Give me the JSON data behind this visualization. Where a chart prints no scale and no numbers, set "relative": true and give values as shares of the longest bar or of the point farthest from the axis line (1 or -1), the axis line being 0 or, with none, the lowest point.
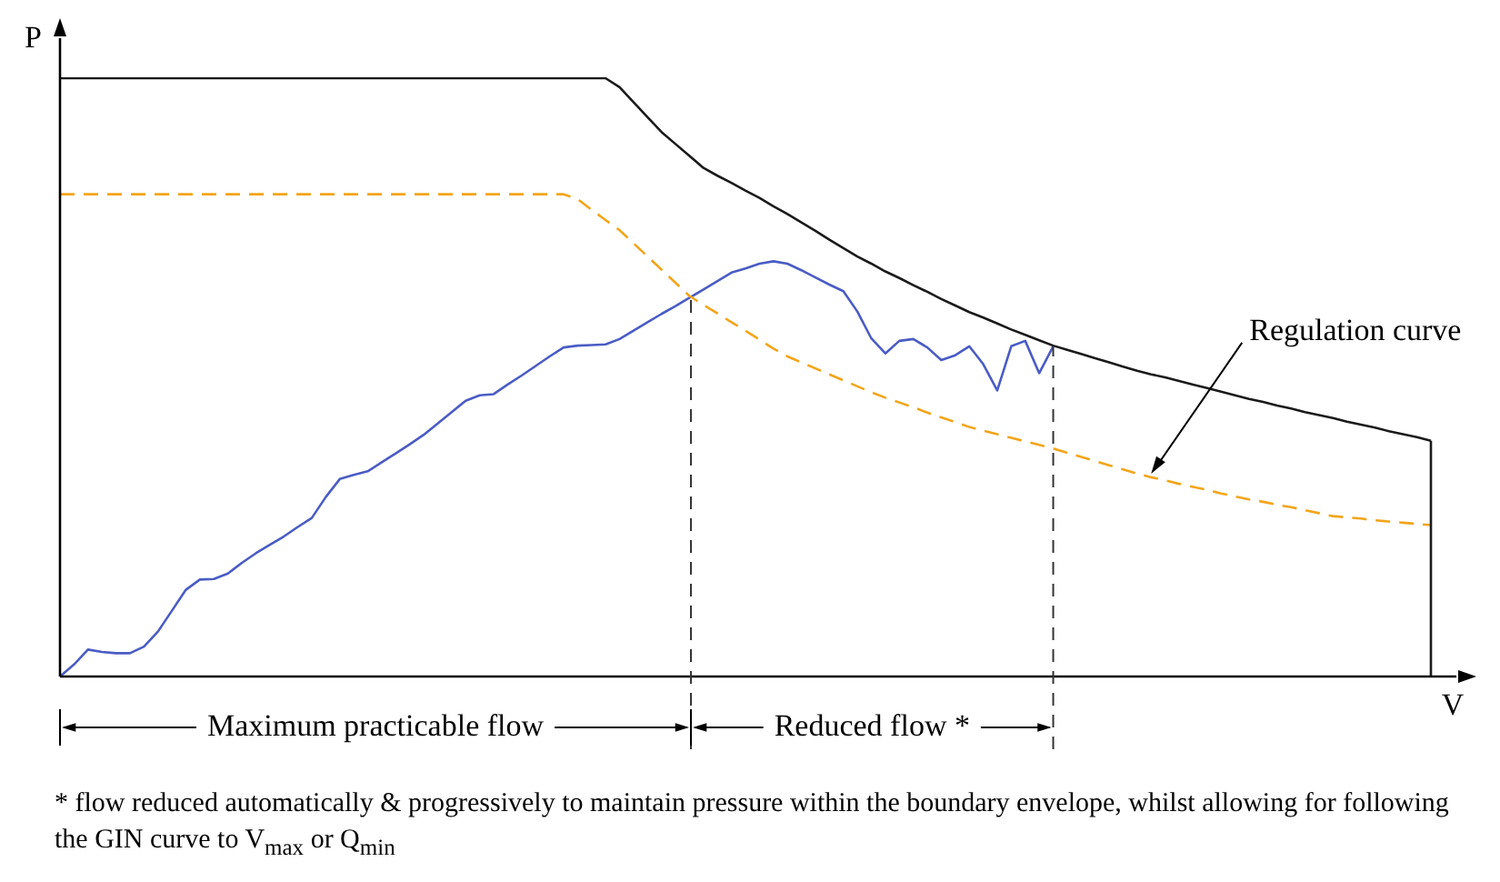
{
  "chart_data": {
    "type": "line",
    "relative": true,
    "xlabel": "V",
    "ylabel": "P",
    "marker": "none",
    "categories": [
      null,
      null,
      null,
      null,
      null,
      null,
      null,
      null,
      null,
      null,
      null,
      null,
      null,
      null,
      null,
      null,
      null,
      null,
      null,
      null,
      null,
      null,
      null,
      null,
      null,
      null,
      null,
      null,
      null,
      null,
      null,
      null,
      null,
      null,
      null,
      null,
      null,
      null,
      null,
      null,
      null,
      null,
      null,
      null,
      null,
      null,
      null,
      null,
      null,
      null,
      null,
      null,
      null,
      null,
      null,
      null,
      null,
      null,
      null,
      null,
      null,
      null,
      null,
      null,
      null,
      null,
      null,
      null,
      null,
      null,
      null,
      null,
      null,
      null,
      null,
      null,
      null,
      null,
      null,
      null,
      null,
      null,
      null,
      null,
      null,
      null,
      null,
      null,
      null,
      null,
      null,
      null,
      null,
      null,
      null,
      null,
      null,
      null,
      null
    ],
    "series": [
      {
        "color": "#1a1a1a",
        "line_style": "solid",
        "values": [
          1,
          1,
          1,
          1,
          1,
          1,
          1,
          1,
          1,
          1,
          1,
          1,
          1,
          1,
          1,
          1,
          1,
          1,
          1,
          1,
          1,
          1,
          1,
          1,
          1,
          1,
          1,
          1,
          1,
          1,
          1,
          1,
          1,
          1,
          1,
          1,
          1,
          1,
          1,
          1,
          0.985,
          0.96,
          0.935,
          0.91,
          0.89,
          0.87,
          0.85,
          0.837,
          0.825,
          0.812,
          0.8,
          0.786,
          0.773,
          0.759,
          0.745,
          0.73,
          0.716,
          0.702,
          0.69,
          0.677,
          0.666,
          0.654,
          0.643,
          0.631,
          0.62,
          0.609,
          0.6,
          0.59,
          0.58,
          0.571,
          0.562,
          0.553,
          0.546,
          0.539,
          0.532,
          0.525,
          0.518,
          0.511,
          0.505,
          0.5,
          0.494,
          0.488,
          0.482,
          0.476,
          0.47,
          0.464,
          0.459,
          0.453,
          0.448,
          0.442,
          0.437,
          0.432,
          0.426,
          0.421,
          0.416,
          0.41,
          0.405,
          0.4,
          0.394
        ]
      },
      {
        "color": "#f2a51a",
        "line_style": "dashed",
        "values": [
          0.806,
          0.806,
          0.806,
          0.806,
          0.806,
          0.806,
          0.806,
          0.806,
          0.806,
          0.806,
          0.806,
          0.806,
          0.806,
          0.806,
          0.806,
          0.806,
          0.806,
          0.806,
          0.806,
          0.806,
          0.806,
          0.806,
          0.806,
          0.806,
          0.806,
          0.806,
          0.806,
          0.806,
          0.806,
          0.806,
          0.806,
          0.806,
          0.806,
          0.806,
          0.806,
          0.806,
          0.806,
          0.798,
          0.78,
          0.763,
          0.746,
          0.724,
          0.702,
          0.68,
          0.658,
          0.636,
          0.621,
          0.607,
          0.592,
          0.578,
          0.563,
          0.548,
          0.535,
          0.525,
          0.515,
          0.505,
          0.495,
          0.485,
          0.475,
          0.466,
          0.458,
          0.45,
          0.441,
          0.433,
          0.425,
          0.417,
          0.411,
          0.405,
          0.399,
          0.393,
          0.387,
          0.381,
          0.374,
          0.367,
          0.36,
          0.353,
          0.346,
          0.339,
          0.333,
          0.328,
          0.322,
          0.317,
          0.312,
          0.306,
          0.301,
          0.296,
          0.292,
          0.287,
          0.283,
          0.278,
          0.273,
          0.268,
          0.266,
          0.264,
          0.261,
          0.259,
          0.257,
          0.255,
          0.253
        ]
      },
      {
        "color": "#4a5cc4",
        "line_style": "solid",
        "values": [
          0,
          0.02,
          0.045,
          0.041,
          0.039,
          0.039,
          0.05,
          0.075,
          0.11,
          0.145,
          0.162,
          0.163,
          0.172,
          0.19,
          0.206,
          0.22,
          0.234,
          0.25,
          0.265,
          0.3,
          0.33,
          0.337,
          0.343,
          0.358,
          0.373,
          0.388,
          0.404,
          0.423,
          0.442,
          0.461,
          0.47,
          0.472,
          0.488,
          0.503,
          0.519,
          0.535,
          0.55,
          0.553,
          0.554,
          0.555,
          0.564,
          0.578,
          0.592,
          0.606,
          0.619,
          0.633,
          0.647,
          0.661,
          0.675,
          0.682,
          0.69,
          0.694,
          0.69,
          0.679,
          0.667,
          0.655,
          0.644,
          0.61,
          0.565,
          0.54,
          0.561,
          0.564,
          0.55,
          0.529,
          0.537,
          0.552,
          0.522,
          0.478,
          0.552,
          0.561,
          0.507,
          0.552,
          null,
          null,
          null,
          null,
          null,
          null,
          null,
          null,
          null,
          null,
          null,
          null,
          null,
          null,
          null,
          null,
          null,
          null,
          null,
          null,
          null,
          null,
          null,
          null,
          null,
          null,
          null
        ]
      }
    ],
    "annotations": [
      "Regulation curve",
      "Maximum practicable flow",
      "Reduced flow *",
      "* flow reduced automatically & progressively to maintain pressure within the boundary envelope, whilst allowing for following the GIN curve to V$_{max}$ or Q$_{min}$"
    ]
  }
}
